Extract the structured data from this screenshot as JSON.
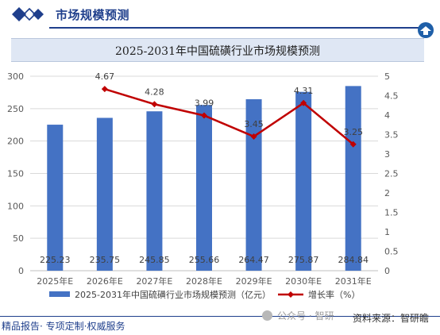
{
  "header": {
    "title": "市场规模预测"
  },
  "footer": {
    "tagline": "精品报告· 专项定制·权威服务"
  },
  "watermark": {
    "account": "公众号 · 智研",
    "source": "资料来源：智研瞻"
  },
  "colors": {
    "bar": "#4472c4",
    "line": "#c00000",
    "brand": "#1f3f8c"
  },
  "chart_data": {
    "type": "bar",
    "title": "2025-2031年中国硫磺行业市场规模预测",
    "categories": [
      "2025年E",
      "2026年E",
      "2027年E",
      "2028年E",
      "2029年E",
      "2030年E",
      "2031年E"
    ],
    "series": [
      {
        "name": "2025-2031年中国硫磺行业市场规模预测（亿元）",
        "type": "bar",
        "axis": "left",
        "values": [
          225.23,
          235.75,
          245.85,
          255.66,
          264.47,
          275.87,
          284.84
        ],
        "labels": [
          "225.23",
          "235.75",
          "245.85",
          "255.66",
          "264.47",
          "275.87",
          "284.84"
        ]
      },
      {
        "name": "增长率（%）",
        "type": "line",
        "axis": "right",
        "values": [
          null,
          4.67,
          4.28,
          3.99,
          3.45,
          4.31,
          3.25
        ],
        "labels": [
          "",
          "4.67",
          "4.28",
          "3.99",
          "3.45",
          "4.31",
          "3.25"
        ]
      }
    ],
    "ylim": [
      0,
      300
    ],
    "y_ticks": [
      "0",
      "50",
      "100",
      "150",
      "200",
      "250",
      "300"
    ],
    "y2lim": [
      0,
      5
    ],
    "y2_ticks": [
      "0",
      "0.5",
      "1",
      "1.5",
      "2",
      "2.5",
      "3",
      "3.5",
      "4",
      "4.5",
      "5"
    ],
    "grid": true,
    "legend": "bottom"
  }
}
